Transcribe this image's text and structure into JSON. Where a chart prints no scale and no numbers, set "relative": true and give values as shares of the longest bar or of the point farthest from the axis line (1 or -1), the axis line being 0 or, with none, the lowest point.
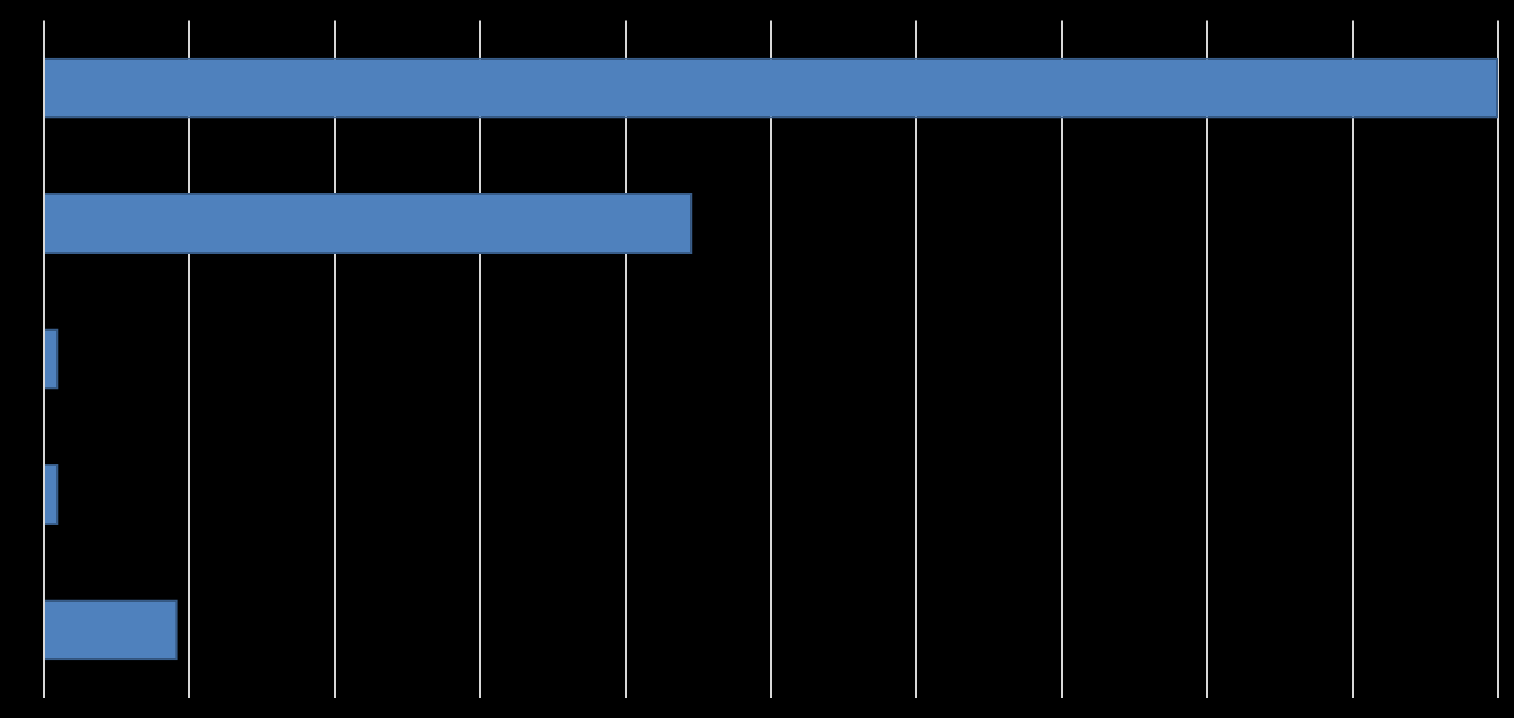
{
  "chart_data": {
    "type": "bar",
    "orientation": "horizontal",
    "relative": true,
    "categories": [
      null,
      null,
      null,
      null,
      null
    ],
    "values": [
      1,
      0.446,
      0.01,
      0.01,
      0.092
    ],
    "color": "#4f81bd",
    "grid": "x"
  }
}
